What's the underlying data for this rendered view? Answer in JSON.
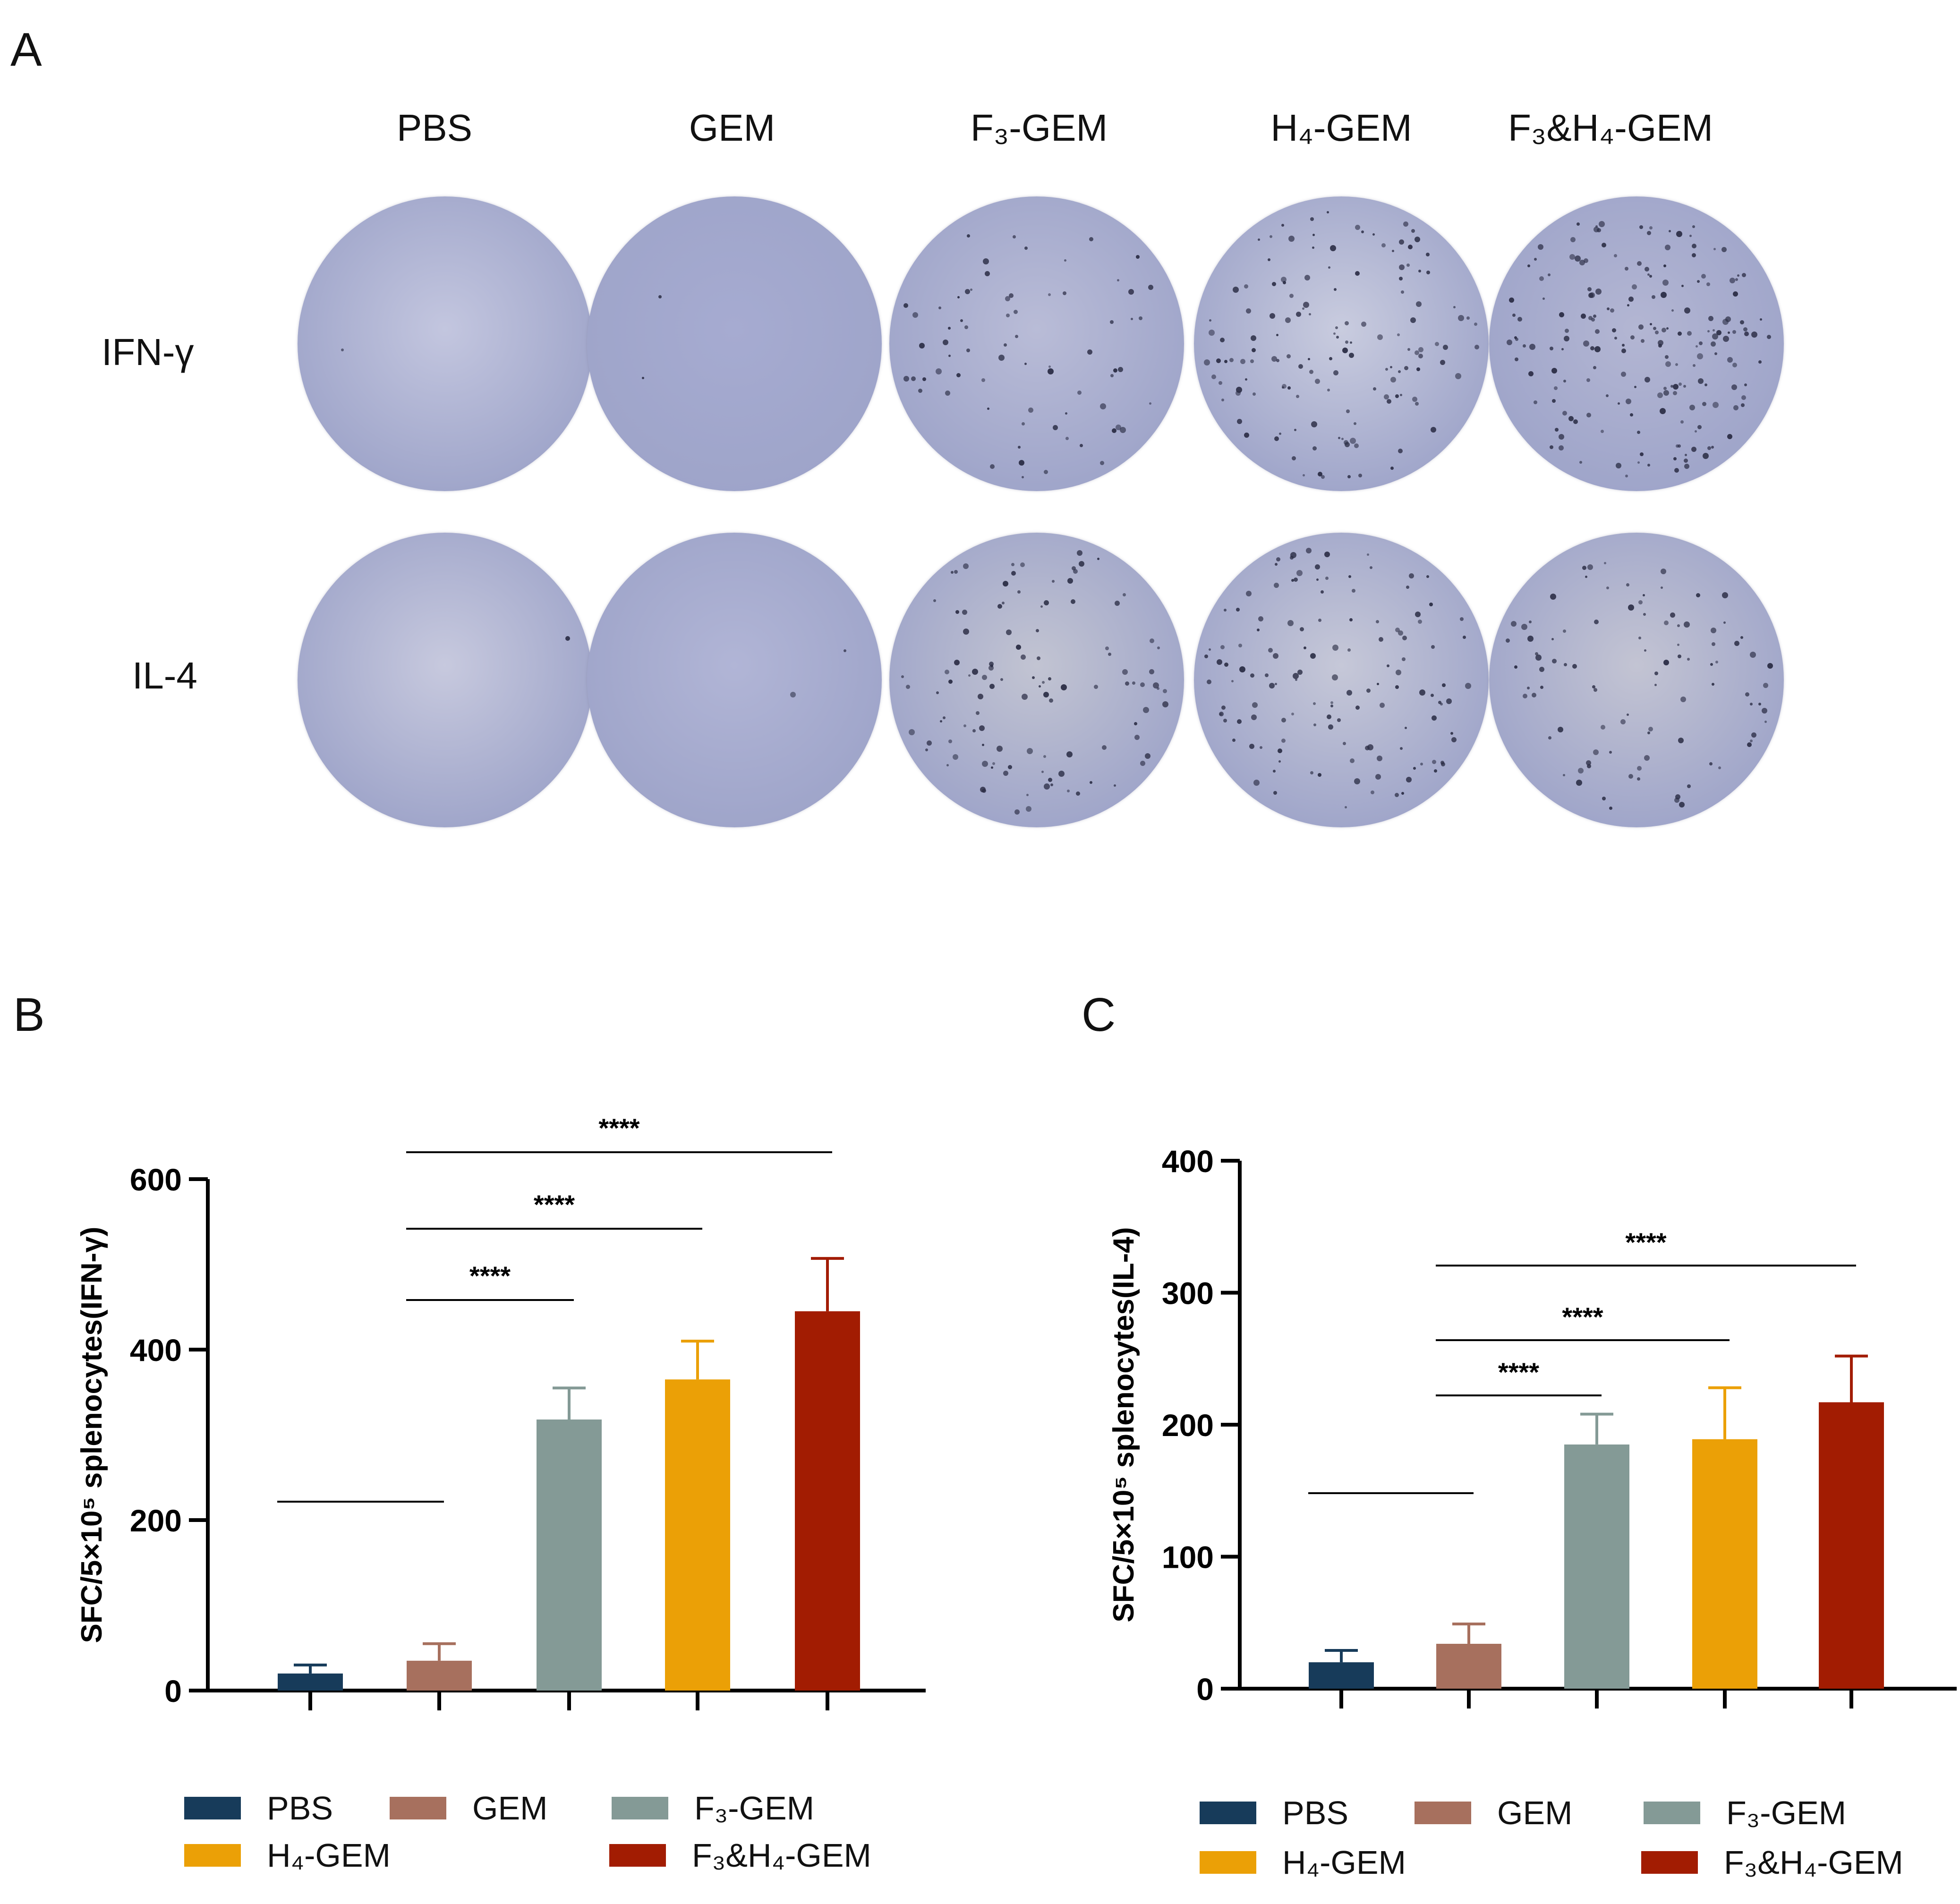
{
  "panels": {
    "a": {
      "letter": "A",
      "columns": [
        "PBS",
        "GEM",
        "F₃-GEM",
        "H₄-GEM",
        "F₃&H₄-GEM"
      ],
      "rows": [
        "IFN-γ",
        "IL-4"
      ]
    },
    "b": {
      "letter": "B"
    },
    "c": {
      "letter": "C"
    }
  },
  "colors": {
    "PBS": "#173b5a",
    "GEM": "#a7705e",
    "F3-GEM": "#849a96",
    "H4-GEM": "#eba006",
    "F3&H4-GEM": "#a21c02",
    "well_light": "#c9ccdf",
    "well_dark": "#9ea4c9",
    "spot": "#2b2d45"
  },
  "legend": [
    "PBS",
    "GEM",
    "F₃-GEM",
    "H₄-GEM",
    "F₃&H₄-GEM"
  ],
  "chart_data": [
    {
      "type": "bar",
      "panel": "B",
      "ylabel": "SFC/5×10⁵ splenocytes(IFN-γ)",
      "ylim": [
        0,
        600
      ],
      "yticks": [
        0,
        200,
        400,
        600
      ],
      "categories": [
        "PBS",
        "GEM",
        "F₃-GEM",
        "H₄-GEM",
        "F₃&H₄-GEM"
      ],
      "values": [
        20,
        35,
        318,
        365,
        445
      ],
      "errors": [
        10,
        20,
        37,
        45,
        62
      ],
      "significance": [
        {
          "from": 0,
          "to": 1,
          "label": ""
        },
        {
          "from": 1,
          "to": 2,
          "label": "****"
        },
        {
          "from": 1,
          "to": 3,
          "label": "****"
        },
        {
          "from": 1,
          "to": 4,
          "label": "****"
        }
      ]
    },
    {
      "type": "bar",
      "panel": "C",
      "ylabel": "SFC/5×10⁵ splenocytes(IL-4)",
      "ylim": [
        0,
        400
      ],
      "yticks": [
        0,
        100,
        200,
        300,
        400
      ],
      "categories": [
        "PBS",
        "GEM",
        "F₃-GEM",
        "H₄-GEM",
        "F₃&H₄-GEM"
      ],
      "values": [
        20,
        34,
        185,
        189,
        217
      ],
      "errors": [
        9,
        15,
        23,
        39,
        35
      ],
      "significance": [
        {
          "from": 0,
          "to": 1,
          "label": ""
        },
        {
          "from": 1,
          "to": 2,
          "label": "****"
        },
        {
          "from": 1,
          "to": 3,
          "label": "****"
        },
        {
          "from": 1,
          "to": 4,
          "label": "****"
        }
      ]
    }
  ]
}
